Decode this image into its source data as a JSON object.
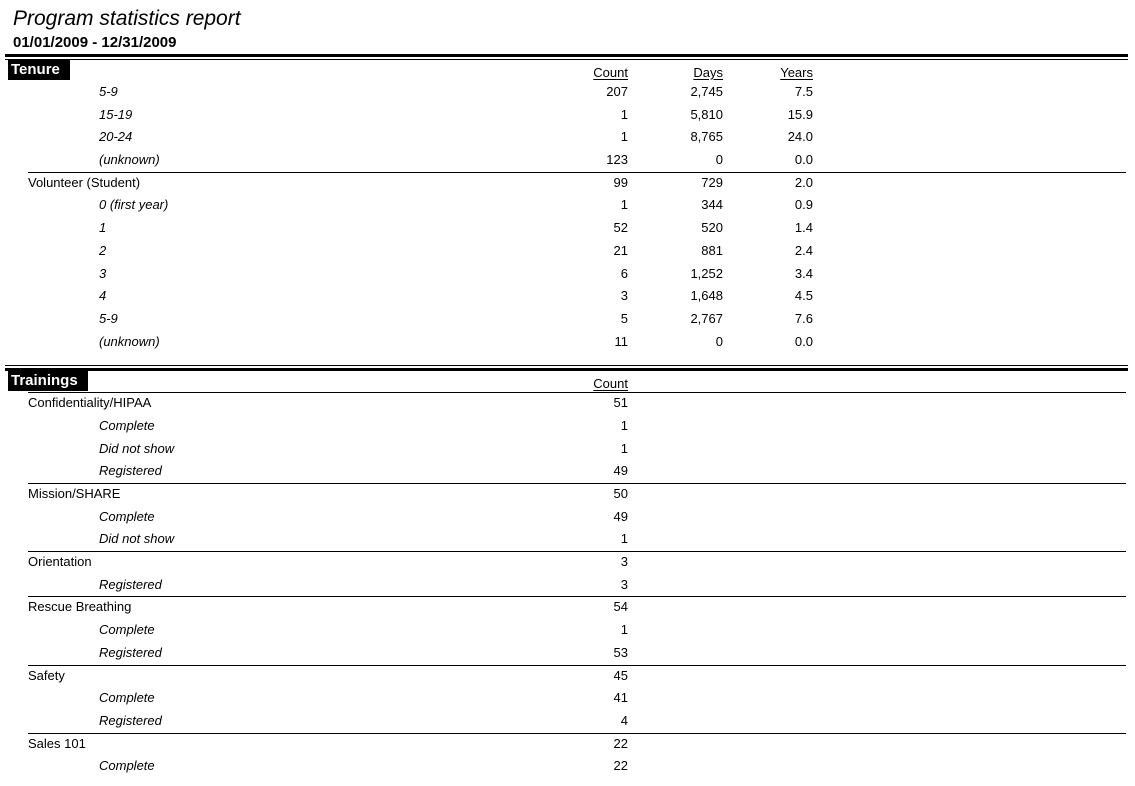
{
  "report": {
    "title": "Program statistics report",
    "date_range": "01/01/2009 - 12/31/2009"
  },
  "colors": {
    "page_bg": "#ffffff",
    "text": "#000000",
    "section_label_bg": "#000000",
    "section_label_fg": "#ffffff"
  },
  "sections": [
    {
      "label": "Tenure",
      "columns": [
        "Count",
        "Days",
        "Years"
      ],
      "rows": [
        {
          "label": "5-9",
          "indent": true,
          "separator": false,
          "values": [
            "207",
            "2,745",
            "7.5"
          ]
        },
        {
          "label": "15-19",
          "indent": true,
          "separator": false,
          "values": [
            "1",
            "5,810",
            "15.9"
          ]
        },
        {
          "label": "20-24",
          "indent": true,
          "separator": false,
          "values": [
            "1",
            "8,765",
            "24.0"
          ]
        },
        {
          "label": "(unknown)",
          "indent": true,
          "separator": false,
          "values": [
            "123",
            "0",
            "0.0"
          ]
        },
        {
          "label": "Volunteer (Student)",
          "indent": false,
          "separator": true,
          "values": [
            "99",
            "729",
            "2.0"
          ]
        },
        {
          "label": "0 (first year)",
          "indent": true,
          "separator": false,
          "values": [
            "1",
            "344",
            "0.9"
          ]
        },
        {
          "label": "1",
          "indent": true,
          "separator": false,
          "values": [
            "52",
            "520",
            "1.4"
          ]
        },
        {
          "label": "2",
          "indent": true,
          "separator": false,
          "values": [
            "21",
            "881",
            "2.4"
          ]
        },
        {
          "label": "3",
          "indent": true,
          "separator": false,
          "values": [
            "6",
            "1,252",
            "3.4"
          ]
        },
        {
          "label": "4",
          "indent": true,
          "separator": false,
          "values": [
            "3",
            "1,648",
            "4.5"
          ]
        },
        {
          "label": "5-9",
          "indent": true,
          "separator": false,
          "values": [
            "5",
            "2,767",
            "7.6"
          ]
        },
        {
          "label": "(unknown)",
          "indent": true,
          "separator": false,
          "values": [
            "11",
            "0",
            "0.0"
          ]
        }
      ]
    },
    {
      "label": "Trainings",
      "columns": [
        "Count"
      ],
      "rows": [
        {
          "label": "Confidentiality/HIPAA",
          "indent": false,
          "separator": true,
          "values": [
            "51"
          ]
        },
        {
          "label": "Complete",
          "indent": true,
          "separator": false,
          "values": [
            "1"
          ]
        },
        {
          "label": "Did not show",
          "indent": true,
          "separator": false,
          "values": [
            "1"
          ]
        },
        {
          "label": "Registered",
          "indent": true,
          "separator": false,
          "values": [
            "49"
          ]
        },
        {
          "label": "Mission/SHARE",
          "indent": false,
          "separator": true,
          "values": [
            "50"
          ]
        },
        {
          "label": "Complete",
          "indent": true,
          "separator": false,
          "values": [
            "49"
          ]
        },
        {
          "label": "Did not show",
          "indent": true,
          "separator": false,
          "values": [
            "1"
          ]
        },
        {
          "label": "Orientation",
          "indent": false,
          "separator": true,
          "values": [
            "3"
          ]
        },
        {
          "label": "Registered",
          "indent": true,
          "separator": false,
          "values": [
            "3"
          ]
        },
        {
          "label": "Rescue Breathing",
          "indent": false,
          "separator": true,
          "values": [
            "54"
          ]
        },
        {
          "label": "Complete",
          "indent": true,
          "separator": false,
          "values": [
            "1"
          ]
        },
        {
          "label": "Registered",
          "indent": true,
          "separator": false,
          "values": [
            "53"
          ]
        },
        {
          "label": "Safety",
          "indent": false,
          "separator": true,
          "values": [
            "45"
          ]
        },
        {
          "label": "Complete",
          "indent": true,
          "separator": false,
          "values": [
            "41"
          ]
        },
        {
          "label": "Registered",
          "indent": true,
          "separator": false,
          "values": [
            "4"
          ]
        },
        {
          "label": "Sales 101",
          "indent": false,
          "separator": true,
          "values": [
            "22"
          ]
        },
        {
          "label": "Complete",
          "indent": true,
          "separator": false,
          "values": [
            "22"
          ]
        }
      ]
    }
  ]
}
